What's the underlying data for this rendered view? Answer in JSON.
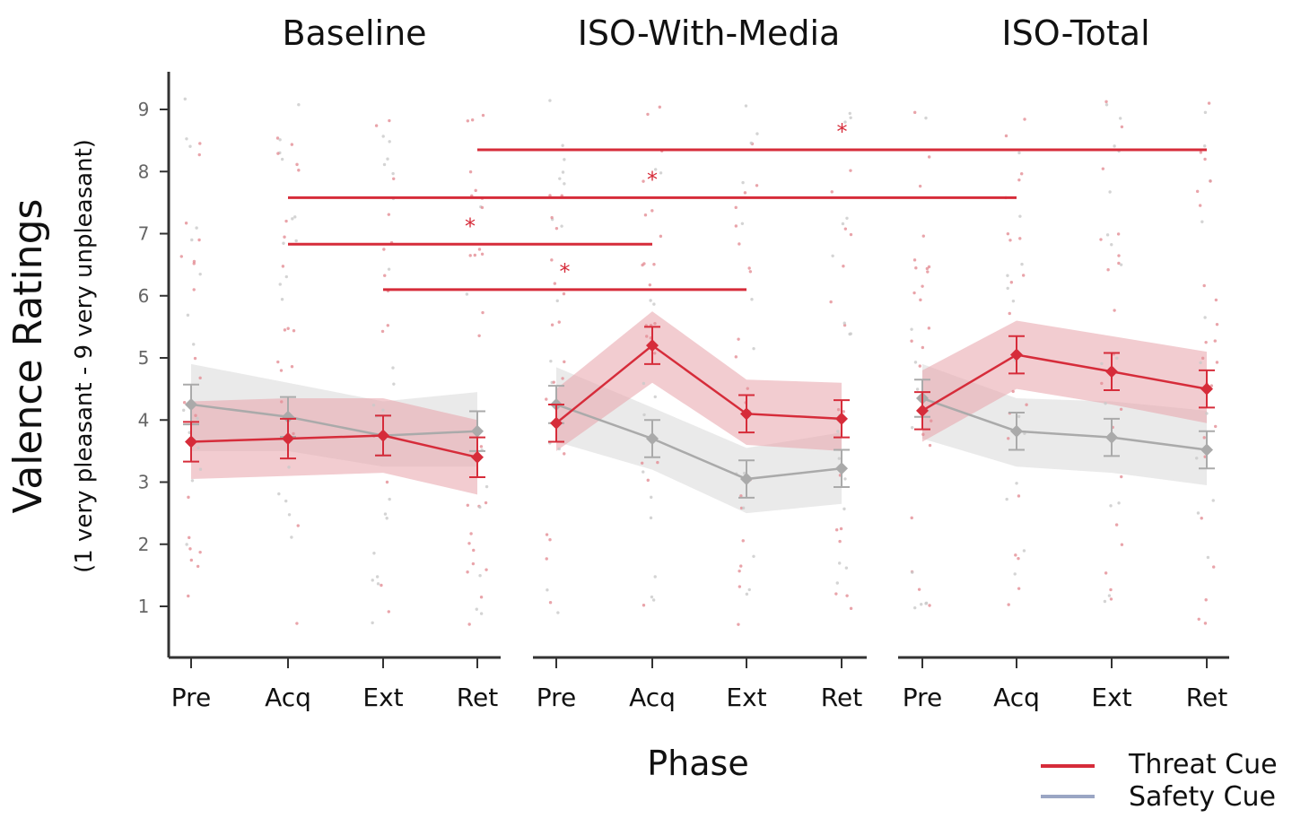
{
  "chart_data": {
    "type": "line",
    "facets": [
      "Baseline",
      "ISO-With-Media",
      "ISO-Total"
    ],
    "categories": [
      "Pre",
      "Acq",
      "Ext",
      "Ret"
    ],
    "xlabel": "Phase",
    "ylabel": "Valence Ratings",
    "ylabel_sub": "(1 very pleasant - 9 very unpleasant)",
    "ylim": [
      0.2,
      9.5
    ],
    "yticks": [
      1,
      2,
      3,
      4,
      5,
      6,
      7,
      8,
      9
    ],
    "colors": {
      "threat": "#d62c3a",
      "safety": "#aaaaaa",
      "legend_safety": "#9aa6c4"
    },
    "legend": {
      "position": "bottom-right",
      "entries": [
        "Threat Cue",
        "Safety Cue"
      ]
    },
    "series": [
      {
        "name": "Threat Cue",
        "facets": [
          {
            "values": [
              3.65,
              3.7,
              3.75,
              3.4
            ],
            "error": [
              0.32,
              0.32,
              0.32,
              0.32
            ],
            "ribbon_lo": [
              3.05,
              3.1,
              3.15,
              2.8
            ],
            "ribbon_hi": [
              4.3,
              4.35,
              4.35,
              4.0
            ]
          },
          {
            "values": [
              3.95,
              5.2,
              4.1,
              4.02
            ],
            "error": [
              0.3,
              0.3,
              0.3,
              0.3
            ],
            "ribbon_lo": [
              3.5,
              4.6,
              3.6,
              3.5
            ],
            "ribbon_hi": [
              4.5,
              5.75,
              4.65,
              4.6
            ]
          },
          {
            "values": [
              4.15,
              5.05,
              4.78,
              4.5
            ],
            "error": [
              0.3,
              0.3,
              0.3,
              0.3
            ],
            "ribbon_lo": [
              3.65,
              4.5,
              4.25,
              3.95
            ],
            "ribbon_hi": [
              4.8,
              5.6,
              5.35,
              5.1
            ]
          }
        ]
      },
      {
        "name": "Safety Cue",
        "facets": [
          {
            "values": [
              4.25,
              4.05,
              3.75,
              3.82
            ],
            "error": [
              0.32,
              0.32,
              0.32,
              0.32
            ],
            "ribbon_lo": [
              3.5,
              3.5,
              3.25,
              3.25
            ],
            "ribbon_hi": [
              4.9,
              4.6,
              4.3,
              4.45
            ]
          },
          {
            "values": [
              4.25,
              3.7,
              3.05,
              3.22
            ],
            "error": [
              0.3,
              0.3,
              0.3,
              0.3
            ],
            "ribbon_lo": [
              3.65,
              3.2,
              2.5,
              2.65
            ],
            "ribbon_hi": [
              4.85,
              4.2,
              3.55,
              3.8
            ]
          },
          {
            "values": [
              4.35,
              3.82,
              3.72,
              3.52
            ],
            "error": [
              0.3,
              0.3,
              0.3,
              0.3
            ],
            "ribbon_lo": [
              3.7,
              3.25,
              3.15,
              2.95
            ],
            "ribbon_hi": [
              4.9,
              4.35,
              4.3,
              4.15
            ]
          }
        ]
      }
    ],
    "significance": [
      {
        "from": [
          0,
          3
        ],
        "to": [
          2,
          3
        ],
        "y": 8.35,
        "label": "*"
      },
      {
        "from": [
          0,
          1
        ],
        "to": [
          2,
          1
        ],
        "y": 7.58,
        "label": "*"
      },
      {
        "from": [
          0,
          1
        ],
        "to": [
          1,
          1
        ],
        "y": 6.83,
        "label": "*"
      },
      {
        "from": [
          0,
          2
        ],
        "to": [
          1,
          2
        ],
        "y": 6.1,
        "label": "*"
      }
    ]
  }
}
